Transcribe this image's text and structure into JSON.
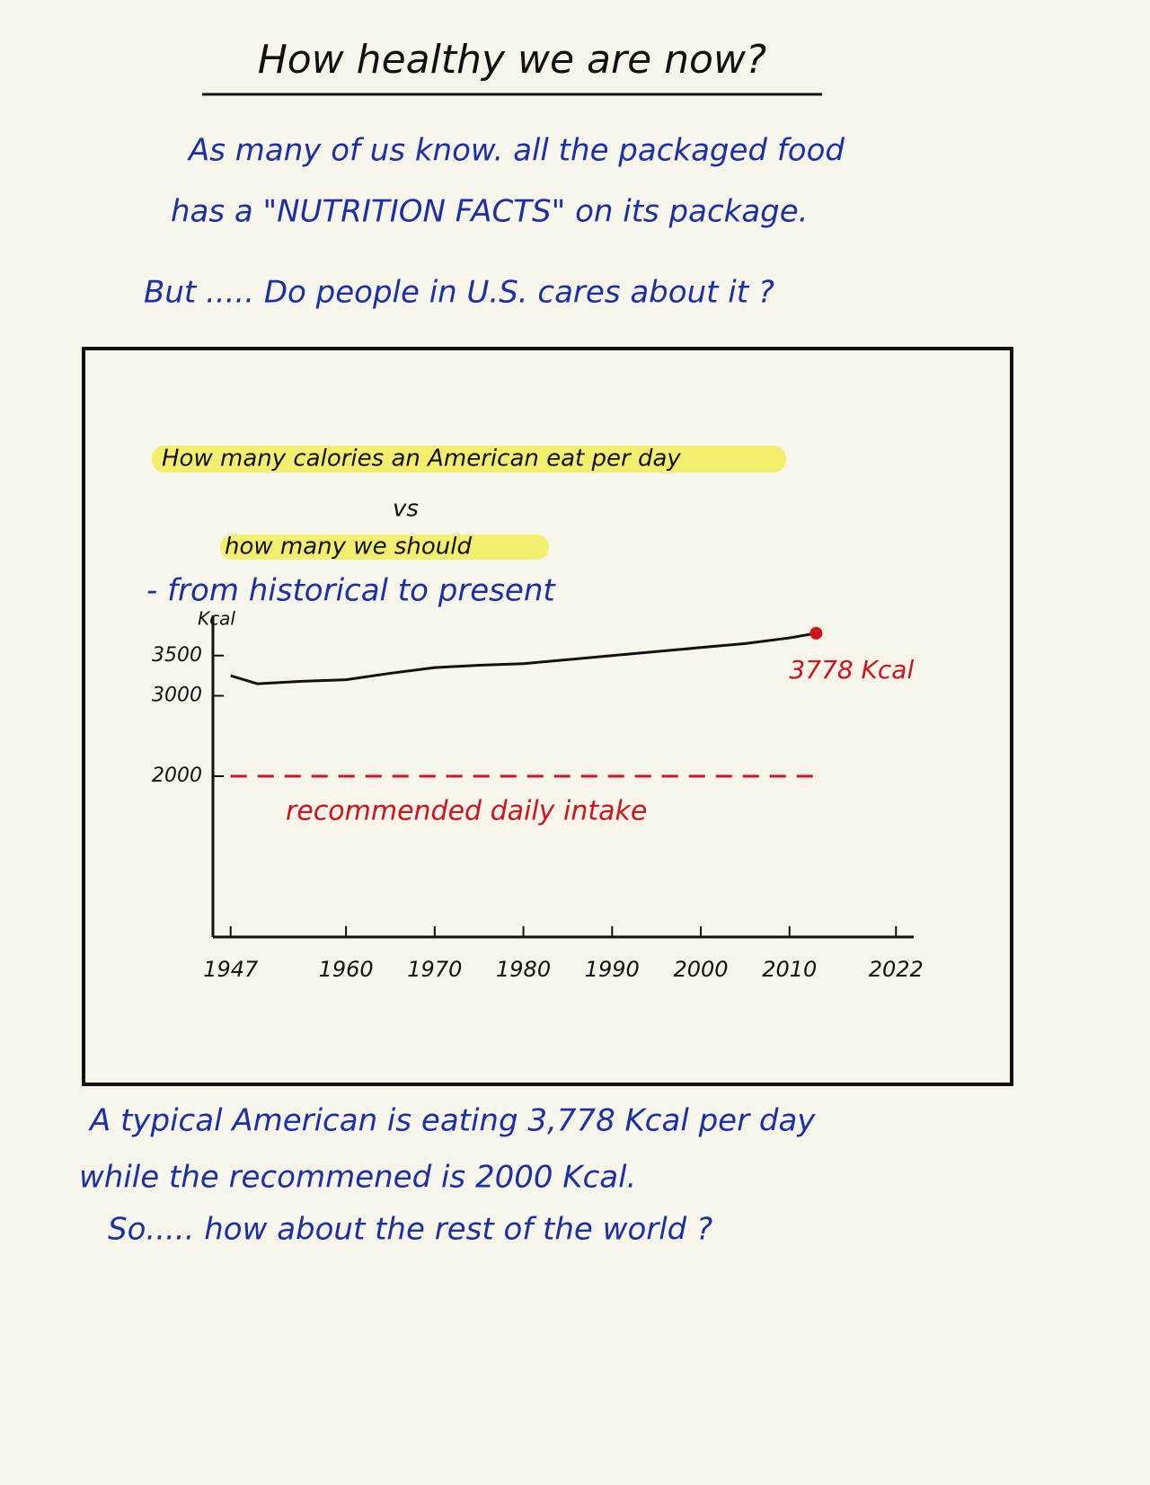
{
  "title": "How healthy we are now?",
  "intro": [
    "As many of us know. all the packaged food",
    "has a \"NUTRITION FACTS\" on its package.",
    "But ..... Do people in U.S. cares about it ?"
  ],
  "chart_data": {
    "type": "line",
    "title": "How many calories an American eat per day",
    "subtitle": [
      "vs",
      "how many we should"
    ],
    "note": "- from historical to present",
    "y_label": "Kcal",
    "x": [
      1947,
      1950,
      1955,
      1960,
      1965,
      1970,
      1975,
      1980,
      1985,
      1990,
      1995,
      2000,
      2005,
      2010,
      2013
    ],
    "xlim": [
      1945,
      2024
    ],
    "xticks": [
      1947,
      1960,
      1970,
      1980,
      1990,
      2000,
      2010,
      2022
    ],
    "ylim": [
      0,
      4000
    ],
    "yticks": [
      2000,
      3000,
      3500
    ],
    "series": [
      {
        "color": "#111111",
        "values": [
          3250,
          3150,
          3180,
          3200,
          3280,
          3350,
          3380,
          3400,
          3450,
          3500,
          3550,
          3600,
          3650,
          3720,
          3778
        ],
        "value_labels": [
          null,
          null,
          null,
          null,
          null,
          null,
          null,
          null,
          null,
          null,
          null,
          null,
          null,
          null,
          "3778 Kcal"
        ]
      },
      {
        "name": "recommended daily intake",
        "color": "#d0141c",
        "dashed": true,
        "values": [
          2000,
          2000,
          2000,
          2000,
          2000,
          2000,
          2000,
          2000,
          2000,
          2000,
          2000,
          2000,
          2000,
          2000,
          2000
        ]
      }
    ]
  },
  "conclusion": [
    "A typical American is eating 3,778 Kcal per day",
    "while the recommened is 2000 Kcal.",
    "So..... how about the rest of the world ?"
  ]
}
